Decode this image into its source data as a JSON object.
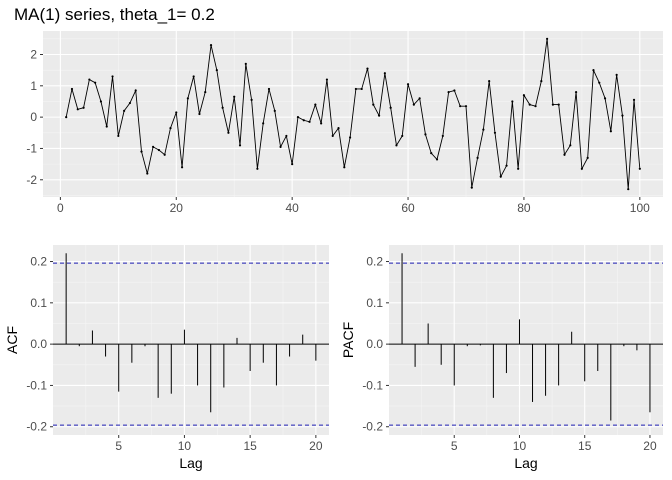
{
  "title": "MA(1) series, theta_1= 0.2",
  "chart_data": [
    {
      "type": "line",
      "x": [
        1,
        2,
        3,
        4,
        5,
        6,
        7,
        8,
        9,
        10,
        11,
        12,
        13,
        14,
        15,
        16,
        17,
        18,
        19,
        20,
        21,
        22,
        23,
        24,
        25,
        26,
        27,
        28,
        29,
        30,
        31,
        32,
        33,
        34,
        35,
        36,
        37,
        38,
        39,
        40,
        41,
        42,
        43,
        44,
        45,
        46,
        47,
        48,
        49,
        50,
        51,
        52,
        53,
        54,
        55,
        56,
        57,
        58,
        59,
        60,
        61,
        62,
        63,
        64,
        65,
        66,
        67,
        68,
        69,
        70,
        71,
        72,
        73,
        74,
        75,
        76,
        77,
        78,
        79,
        80,
        81,
        82,
        83,
        84,
        85,
        86,
        87,
        88,
        89,
        90,
        91,
        92,
        93,
        94,
        95,
        96,
        97,
        98,
        99,
        100
      ],
      "values": [
        0.0,
        0.9,
        0.25,
        0.3,
        1.2,
        1.1,
        0.5,
        -0.3,
        1.3,
        -0.6,
        0.2,
        0.45,
        0.85,
        -1.1,
        -1.8,
        -0.95,
        -1.05,
        -1.2,
        -0.35,
        0.15,
        -1.6,
        0.6,
        1.3,
        0.1,
        0.8,
        2.3,
        1.5,
        0.3,
        -0.5,
        0.65,
        -0.9,
        1.7,
        0.55,
        -1.65,
        -0.2,
        0.9,
        0.2,
        -0.95,
        -0.6,
        -1.5,
        0.0,
        -0.1,
        -0.15,
        0.4,
        -0.2,
        1.2,
        -0.6,
        -0.35,
        -1.6,
        -0.65,
        0.9,
        0.9,
        1.55,
        0.4,
        0.05,
        1.4,
        0.3,
        -0.9,
        -0.6,
        1.05,
        0.4,
        0.6,
        -0.55,
        -1.15,
        -1.35,
        -0.6,
        0.8,
        0.85,
        0.35,
        0.35,
        -2.25,
        -1.3,
        -0.4,
        1.15,
        -0.5,
        -1.9,
        -1.55,
        0.5,
        -1.65,
        0.7,
        0.4,
        0.35,
        1.15,
        2.5,
        0.4,
        0.4,
        -1.2,
        -0.9,
        0.8,
        -1.65,
        -1.3,
        1.5,
        1.1,
        0.6,
        -0.45,
        1.35,
        0.05,
        -2.3,
        0.55,
        -1.65
      ],
      "xlim": [
        -3,
        104
      ],
      "ylim": [
        -2.55,
        2.75
      ],
      "xticks": [
        0,
        20,
        40,
        60,
        80,
        100
      ],
      "yticks": [
        -2,
        -1,
        0,
        1,
        2
      ],
      "xlabel": "",
      "ylabel": "",
      "grid": true
    },
    {
      "type": "bar",
      "x": [
        1,
        2,
        3,
        4,
        5,
        6,
        7,
        8,
        9,
        10,
        11,
        12,
        13,
        14,
        15,
        16,
        17,
        18,
        19,
        20
      ],
      "values": [
        0.22,
        -0.005,
        0.033,
        -0.03,
        -0.115,
        -0.045,
        -0.005,
        -0.13,
        -0.12,
        0.035,
        -0.1,
        -0.165,
        -0.105,
        0.015,
        -0.065,
        -0.045,
        -0.1,
        -0.03,
        0.023,
        -0.04
      ],
      "bounds": [
        0.196,
        -0.196
      ],
      "xlim": [
        0,
        21
      ],
      "ylim": [
        -0.22,
        0.24
      ],
      "xticks": [
        5,
        10,
        15,
        20
      ],
      "yticks": [
        -0.2,
        -0.1,
        0.0,
        0.1,
        0.2
      ],
      "ytick_labels": [
        "-0.2",
        "-0.1",
        "0.0",
        "0.1",
        "0.2"
      ],
      "xlabel": "Lag",
      "ylabel": "ACF",
      "grid": true
    },
    {
      "type": "bar",
      "x": [
        1,
        2,
        3,
        4,
        5,
        6,
        7,
        8,
        9,
        10,
        11,
        12,
        13,
        14,
        15,
        16,
        17,
        18,
        19,
        20
      ],
      "values": [
        0.22,
        -0.055,
        0.05,
        -0.05,
        -0.1,
        -0.005,
        -0.003,
        -0.13,
        -0.07,
        0.06,
        -0.14,
        -0.125,
        -0.1,
        0.03,
        -0.09,
        -0.065,
        -0.185,
        -0.005,
        -0.015,
        -0.165
      ],
      "bounds": [
        0.196,
        -0.196
      ],
      "xlim": [
        0,
        21
      ],
      "ylim": [
        -0.22,
        0.24
      ],
      "xticks": [
        5,
        10,
        15,
        20
      ],
      "yticks": [
        -0.2,
        -0.1,
        0.0,
        0.1,
        0.2
      ],
      "ytick_labels": [
        "-0.2",
        "-0.1",
        "0.0",
        "0.1",
        "0.2"
      ],
      "xlabel": "Lag",
      "ylabel": "PACF",
      "grid": true
    }
  ],
  "colors": {
    "panel_bg": "#ebebeb",
    "grid_major": "#ffffff",
    "grid_minor": "#f5f5f5",
    "series": "#000000",
    "bound": "#1f1fb4",
    "tick_text": "#4d4d4d",
    "axis_text": "#000000"
  }
}
